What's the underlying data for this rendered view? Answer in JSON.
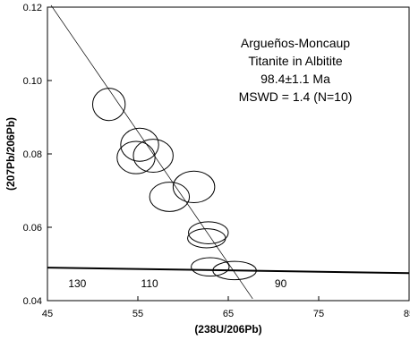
{
  "chart_data": {
    "type": "scatter",
    "xlabel": "(238U/206Pb)",
    "ylabel": "(207Pb/206Pb)",
    "xlim": [
      45,
      85
    ],
    "ylim": [
      0.04,
      0.12
    ],
    "x_ticks": [
      "45",
      "55",
      "65",
      "75",
      "85"
    ],
    "y_ticks": [
      "0.04",
      "0.06",
      "0.08",
      "0.10",
      "0.12"
    ],
    "annotations": [
      "Argueños-Moncaup",
      "Titanite in Albitite",
      "98.4±1.1 Ma",
      "MSWD = 1.4 (N=10)"
    ],
    "error_ellipses": [
      {
        "x": 51.8,
        "y": 0.0935,
        "rx": 1.8,
        "ry": 0.0044
      },
      {
        "x": 55.2,
        "y": 0.0825,
        "rx": 2.1,
        "ry": 0.0045
      },
      {
        "x": 54.8,
        "y": 0.079,
        "rx": 2.1,
        "ry": 0.0044
      },
      {
        "x": 56.7,
        "y": 0.0795,
        "rx": 2.2,
        "ry": 0.0045
      },
      {
        "x": 58.5,
        "y": 0.0683,
        "rx": 2.2,
        "ry": 0.004
      },
      {
        "x": 61.2,
        "y": 0.071,
        "rx": 2.3,
        "ry": 0.0043
      },
      {
        "x": 62.8,
        "y": 0.0585,
        "rx": 2.2,
        "ry": 0.003
      },
      {
        "x": 62.6,
        "y": 0.057,
        "rx": 2.1,
        "ry": 0.0026
      },
      {
        "x": 63.0,
        "y": 0.0492,
        "rx": 2.1,
        "ry": 0.0025
      },
      {
        "x": 65.7,
        "y": 0.0482,
        "rx": 2.4,
        "ry": 0.0025
      }
    ],
    "regression_line": {
      "x1": 45.4,
      "y1": 0.1205,
      "x2": 67.7,
      "y2": 0.0405
    },
    "concordia_curve": {
      "x1": 45,
      "y1": 0.049,
      "x2": 85,
      "y2": 0.0475
    },
    "concordia_labels": [
      {
        "text": "130",
        "x": 48.3
      },
      {
        "text": "110",
        "x": 56.3
      },
      {
        "text": "90",
        "x": 70.8
      }
    ]
  }
}
